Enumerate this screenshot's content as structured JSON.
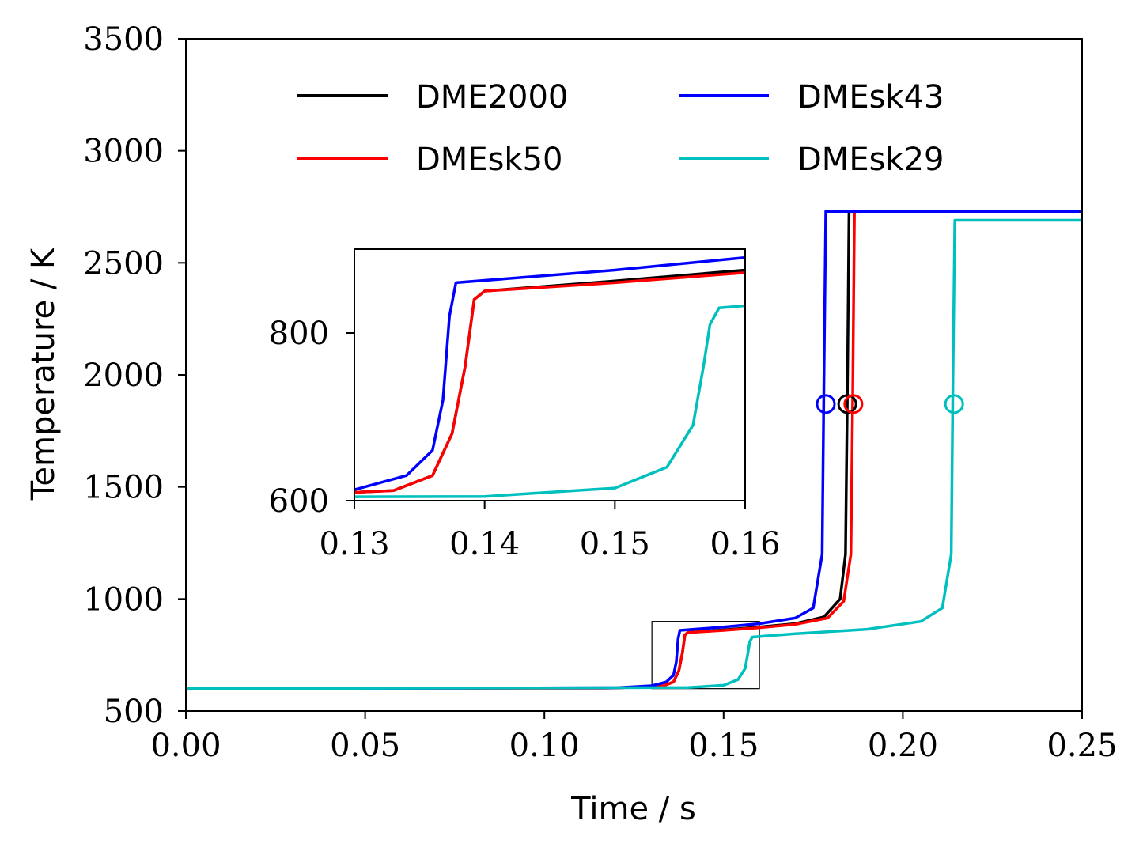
{
  "chart_data": {
    "type": "line",
    "title": "",
    "xlabel": "Time / s",
    "ylabel": "Temperature / K",
    "xlim": [
      0.0,
      0.25
    ],
    "ylim": [
      500,
      3500
    ],
    "xticks": [
      "0.00",
      "0.05",
      "0.10",
      "0.15",
      "0.20",
      "0.25"
    ],
    "yticks": [
      "500",
      "1000",
      "1500",
      "2000",
      "2500",
      "3000",
      "3500"
    ],
    "legend_position": "top",
    "series": [
      {
        "name": "DME2000",
        "color": "#000000",
        "x": [
          0.0,
          0.12,
          0.133,
          0.136,
          0.1375,
          0.1385,
          0.1392,
          0.14,
          0.15,
          0.16,
          0.17,
          0.178,
          0.1825,
          0.184,
          0.1845,
          0.185,
          0.25
        ],
        "y": [
          600,
          603,
          612,
          630,
          680,
          760,
          840,
          850,
          862,
          875,
          890,
          920,
          1000,
          1200,
          1900,
          2730,
          2730
        ],
        "marker": {
          "x": 0.1845,
          "y": 1870
        }
      },
      {
        "name": "DMEsk50",
        "color": "#ff0000",
        "x": [
          0.0,
          0.12,
          0.133,
          0.136,
          0.1375,
          0.1385,
          0.1392,
          0.14,
          0.15,
          0.16,
          0.17,
          0.179,
          0.1835,
          0.1855,
          0.186,
          0.1865,
          0.25
        ],
        "y": [
          600,
          603,
          612,
          630,
          680,
          760,
          840,
          850,
          860,
          872,
          887,
          915,
          990,
          1200,
          1900,
          2730,
          2730
        ],
        "marker": {
          "x": 0.1862,
          "y": 1870
        }
      },
      {
        "name": "DMEsk43",
        "color": "#0000ff",
        "x": [
          0.0,
          0.12,
          0.13,
          0.134,
          0.136,
          0.1368,
          0.1373,
          0.1378,
          0.15,
          0.16,
          0.17,
          0.175,
          0.1775,
          0.178,
          0.1785,
          0.25
        ],
        "y": [
          600,
          604,
          613,
          630,
          660,
          720,
          820,
          860,
          875,
          890,
          915,
          960,
          1200,
          2000,
          2730,
          2730
        ],
        "marker": {
          "x": 0.1785,
          "y": 1870
        }
      },
      {
        "name": "DMEsk29",
        "color": "#00bfbf",
        "x": [
          0.0,
          0.14,
          0.15,
          0.154,
          0.156,
          0.1568,
          0.1573,
          0.158,
          0.17,
          0.19,
          0.205,
          0.211,
          0.2135,
          0.214,
          0.2145,
          0.25
        ],
        "y": [
          600,
          605,
          615,
          640,
          690,
          760,
          810,
          830,
          845,
          865,
          900,
          960,
          1200,
          2000,
          2690,
          2690
        ],
        "marker": {
          "x": 0.2143,
          "y": 1870
        }
      }
    ],
    "zoom_box": {
      "x": [
        0.13,
        0.16
      ],
      "y": [
        600,
        900
      ]
    },
    "inset": {
      "xlim": [
        0.13,
        0.16
      ],
      "ylim": [
        600,
        900
      ],
      "xticks": [
        "0.13",
        "0.14",
        "0.15",
        "0.16"
      ],
      "yticks": [
        "600",
        "800"
      ]
    }
  }
}
